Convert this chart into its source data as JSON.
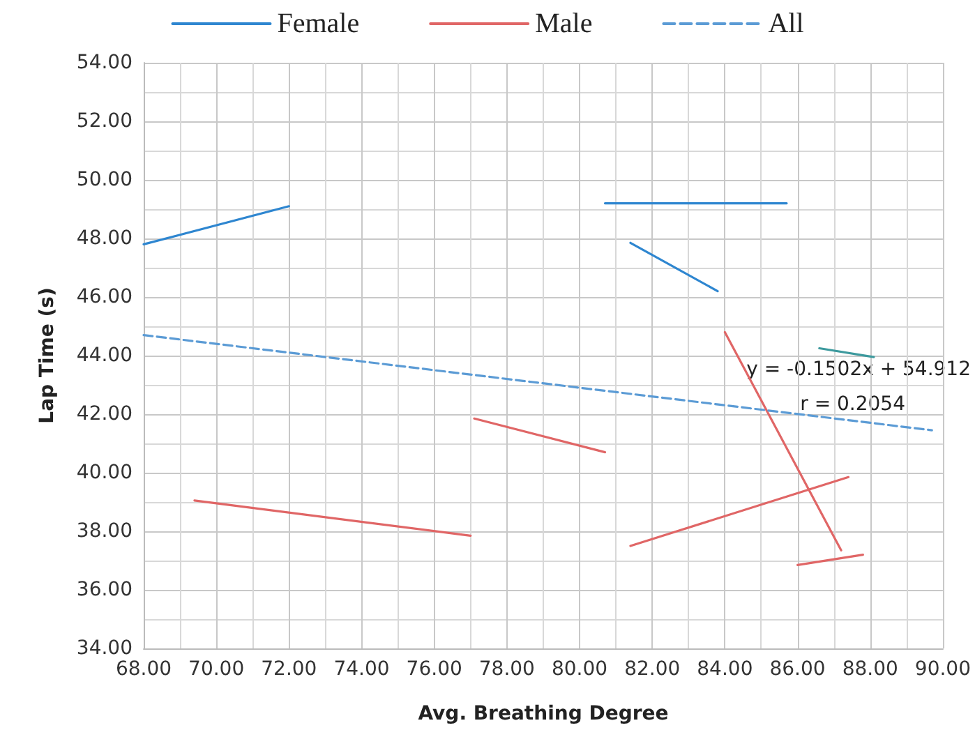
{
  "chart_data": {
    "type": "line",
    "xlabel": "Avg. Breathing Degree",
    "ylabel": "Lap Time (s)",
    "series": [
      {
        "name": "Female",
        "color": "#2e86d0",
        "x": [
          68.0,
          72.0,
          null,
          80.7,
          85.7,
          null,
          81.4,
          83.8
        ],
        "values": [
          47.8,
          49.1,
          null,
          49.2,
          49.2,
          null,
          47.85,
          46.2
        ]
      },
      {
        "name": "Male",
        "color": "#e06666",
        "x": [
          69.4,
          77.0,
          null,
          77.1,
          80.7,
          null,
          84.0,
          87.2,
          null,
          81.4,
          87.4,
          null,
          86.0,
          87.8
        ],
        "values": [
          39.05,
          37.85,
          null,
          41.85,
          40.7,
          null,
          44.8,
          37.35,
          null,
          37.5,
          39.85,
          null,
          36.85,
          37.2
        ]
      },
      {
        "color": "#3d9a9e",
        "x": [
          86.6,
          88.1
        ],
        "values": [
          44.25,
          43.95
        ]
      },
      {
        "name": "All",
        "color": "#5b9bd5",
        "line_style": "dashed",
        "x": [
          68.0,
          89.7
        ],
        "values": [
          44.7,
          41.45
        ]
      }
    ],
    "annotations": [
      "y = -0.1502x + 54.912",
      "r = 0.2054"
    ],
    "xlim": [
      68,
      90
    ],
    "xticks": [
      {
        "value": 68,
        "label": "68.00"
      },
      {
        "value": 70,
        "label": "70.00"
      },
      {
        "value": 72,
        "label": "72.00"
      },
      {
        "value": 74,
        "label": "74.00"
      },
      {
        "value": 76,
        "label": "76.00"
      },
      {
        "value": 78,
        "label": "78.00"
      },
      {
        "value": 80,
        "label": "80.00"
      },
      {
        "value": 82,
        "label": "82.00"
      },
      {
        "value": 84,
        "label": "84.00"
      },
      {
        "value": 86,
        "label": "86.00"
      },
      {
        "value": 88,
        "label": "88.00"
      },
      {
        "value": 90,
        "label": "90.00"
      }
    ],
    "ylim": [
      34,
      54
    ],
    "yticks": [
      {
        "value": 34,
        "label": "34.00"
      },
      {
        "value": 36,
        "label": "36.00"
      },
      {
        "value": 38,
        "label": "38.00"
      },
      {
        "value": 40,
        "label": "40.00"
      },
      {
        "value": 42,
        "label": "42.00"
      },
      {
        "value": 44,
        "label": "44.00"
      },
      {
        "value": 46,
        "label": "46.00"
      },
      {
        "value": 48,
        "label": "48.00"
      },
      {
        "value": 50,
        "label": "50.00"
      },
      {
        "value": 52,
        "label": "52.00"
      },
      {
        "value": 54,
        "label": "54.00"
      }
    ],
    "grid": true,
    "legend": "top",
    "marker": "none",
    "line_style": "solid"
  }
}
